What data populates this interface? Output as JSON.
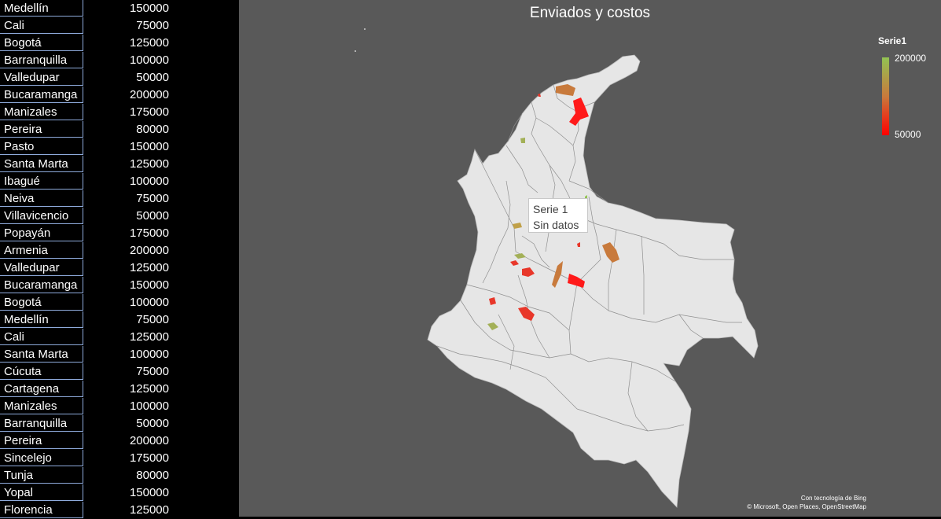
{
  "sheet": {
    "rows": [
      {
        "city": "Medellín",
        "value": "150000"
      },
      {
        "city": "Cali",
        "value": "75000"
      },
      {
        "city": "Bogotá",
        "value": "125000"
      },
      {
        "city": "Barranquilla",
        "value": "100000"
      },
      {
        "city": "Valledupar",
        "value": "50000"
      },
      {
        "city": "Bucaramanga",
        "value": "200000"
      },
      {
        "city": "Manizales",
        "value": "175000"
      },
      {
        "city": "Pereira",
        "value": "80000"
      },
      {
        "city": "Pasto",
        "value": "150000"
      },
      {
        "city": "Santa Marta",
        "value": "125000"
      },
      {
        "city": "Ibagué",
        "value": "100000"
      },
      {
        "city": "Neiva",
        "value": "75000"
      },
      {
        "city": "Villavicencio",
        "value": "50000"
      },
      {
        "city": "Popayán",
        "value": "175000"
      },
      {
        "city": "Armenia",
        "value": "200000"
      },
      {
        "city": "Valledupar",
        "value": "125000"
      },
      {
        "city": "Bucaramanga",
        "value": "150000"
      },
      {
        "city": "Bogotá",
        "value": "100000"
      },
      {
        "city": "Medellín",
        "value": "75000"
      },
      {
        "city": "Cali",
        "value": "125000"
      },
      {
        "city": "Santa Marta",
        "value": "100000"
      },
      {
        "city": "Cúcuta",
        "value": "75000"
      },
      {
        "city": "Cartagena",
        "value": "125000"
      },
      {
        "city": "Manizales",
        "value": "100000"
      },
      {
        "city": "Barranquilla",
        "value": "50000"
      },
      {
        "city": "Pereira",
        "value": "200000"
      },
      {
        "city": "Sincelejo",
        "value": "175000"
      },
      {
        "city": "Tunja",
        "value": "80000"
      },
      {
        "city": "Yopal",
        "value": "150000"
      },
      {
        "city": "Florencia",
        "value": "125000"
      }
    ]
  },
  "chart": {
    "title": "Enviados y costos",
    "legend": {
      "title": "Serie1",
      "max": "200000",
      "min": "50000",
      "max_color": "#92c353",
      "mid_color": "#c87a3c",
      "min_color": "#ff0000"
    },
    "tooltip": {
      "line1": "Serie 1",
      "line2": "Sin datos"
    },
    "credit": {
      "line1": "Con tecnología de Bing",
      "line2": "© Microsoft, Open Places, OpenStreetMap"
    },
    "background": "#595959",
    "land_color": "#e6e6e6"
  }
}
